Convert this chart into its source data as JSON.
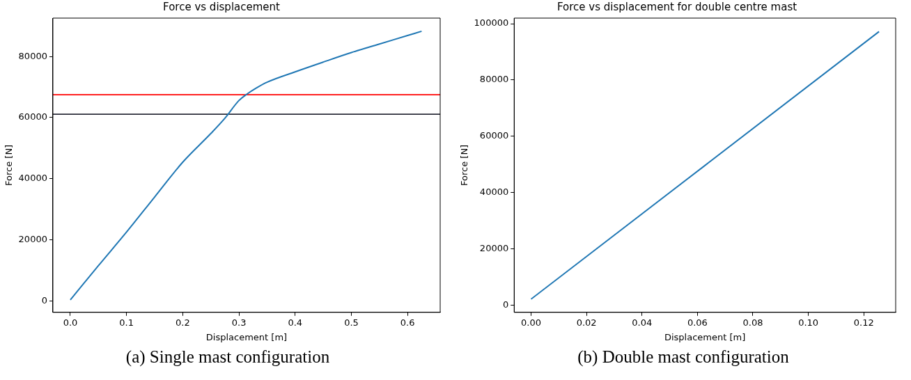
{
  "chart_data": [
    {
      "type": "line",
      "title": "Force vs displacement",
      "xlabel": "Displacement [m]",
      "ylabel": "Force [N]",
      "annotations": [
        "(a) Single mast configuration"
      ],
      "series": [
        {
          "color": "#1f77b4",
          "x": [
            0,
            0.05,
            0.1,
            0.15,
            0.2,
            0.25,
            0.275,
            0.3,
            0.315,
            0.33,
            0.35,
            0.4,
            0.45,
            0.5,
            0.55,
            0.6,
            0.625
          ],
          "values": [
            300,
            11500,
            22500,
            34000,
            45400,
            54800,
            59800,
            65600,
            67800,
            69600,
            71600,
            75000,
            78200,
            81300,
            84100,
            86900,
            88300
          ]
        }
      ],
      "xlim": [
        -0.031,
        0.658
      ],
      "ylim": [
        -3800,
        92600
      ],
      "xticks": [
        {
          "value": 0,
          "label": "0.0"
        },
        {
          "value": 0.1,
          "label": "0.1"
        },
        {
          "value": 0.2,
          "label": "0.2"
        },
        {
          "value": 0.3,
          "label": "0.3"
        },
        {
          "value": 0.4,
          "label": "0.4"
        },
        {
          "value": 0.5,
          "label": "0.5"
        },
        {
          "value": 0.6,
          "label": "0.6"
        }
      ],
      "yticks": [
        0,
        20000,
        40000,
        60000,
        80000
      ],
      "ref_lines": [
        {
          "axis": "y",
          "value": 67500,
          "color": "#ff0000"
        },
        {
          "axis": "y",
          "value": 61100,
          "color": "#2b2d3a"
        }
      ],
      "grid": false,
      "legend": false,
      "marker": "none",
      "line_style": "solid"
    },
    {
      "type": "line",
      "title": "Force vs displacement for double centre mast",
      "xlabel": "Displacement [m]",
      "ylabel": "Force [N]",
      "annotations": [
        "(b) Double mast configuration"
      ],
      "series": [
        {
          "color": "#1f77b4",
          "x": [
            0,
            0.1255
          ],
          "values": [
            2100,
            97200
          ]
        }
      ],
      "xlim": [
        -0.0061,
        0.1315
      ],
      "ylim": [
        -2600,
        102000
      ],
      "xticks": [
        {
          "value": 0,
          "label": "0.00"
        },
        {
          "value": 0.02,
          "label": "0.02"
        },
        {
          "value": 0.04,
          "label": "0.04"
        },
        {
          "value": 0.06,
          "label": "0.06"
        },
        {
          "value": 0.08,
          "label": "0.08"
        },
        {
          "value": 0.1,
          "label": "0.10"
        },
        {
          "value": 0.12,
          "label": "0.12"
        }
      ],
      "yticks": [
        0,
        20000,
        40000,
        60000,
        80000,
        100000
      ],
      "grid": false,
      "legend": false,
      "marker": "none",
      "line_style": "solid"
    }
  ]
}
